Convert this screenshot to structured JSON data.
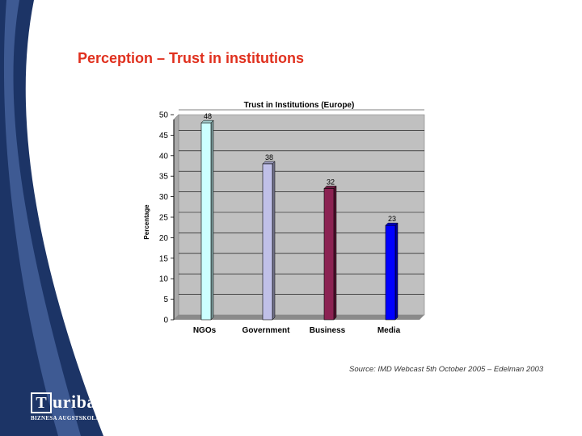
{
  "slide": {
    "title": "Perception – Trust in institutions",
    "source": "Source: IMD Webcast 5th October 2005 – Edelman 2003",
    "logo": {
      "mark": "T",
      "word": "uriba",
      "subtitle": "BIZNESA AUGSTSKOLA"
    }
  },
  "colors": {
    "band_dark": "#1c3466",
    "band_light": "#3e5a93",
    "title": "#e0301e",
    "plot_bg": "#c0c0c0",
    "floor": "#8a8a8a"
  },
  "chart_data": {
    "type": "bar",
    "title": "Trust in Institutions (Europe)",
    "xlabel": "",
    "ylabel": "Percentage",
    "categories": [
      "NGOs",
      "Government",
      "Business",
      "Media"
    ],
    "values": [
      48,
      38,
      32,
      23
    ],
    "data_labels": [
      "48",
      "38",
      "32",
      "23"
    ],
    "bar_colors": [
      "#ccffff",
      "#c0c0e8",
      "#8b2252",
      "#0000ff"
    ],
    "ylim": [
      0,
      50
    ],
    "yticks": [
      0,
      5,
      10,
      15,
      20,
      25,
      30,
      35,
      40,
      45,
      50
    ],
    "grid": true,
    "legend": "none"
  }
}
